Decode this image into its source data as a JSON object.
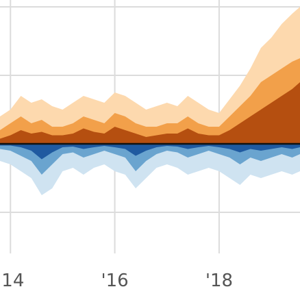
{
  "chart_data": {
    "type": "area",
    "title": "",
    "xlabel": "",
    "ylabel": "",
    "x_ticks": [
      {
        "label": "'14",
        "year": 2014
      },
      {
        "label": "'16",
        "year": 2016
      },
      {
        "label": "'18",
        "year": 2018
      }
    ],
    "xlim": [
      2013.8,
      2019.55
    ],
    "ylim": [
      -3.2,
      4.2
    ],
    "grid": true,
    "baseline": 0,
    "series": [
      {
        "name": "",
        "side": "above",
        "color": "#fdd9ae",
        "x": [
          2013.8,
          2014.0,
          2014.2,
          2014.4,
          2014.6,
          2014.8,
          2015.0,
          2015.2,
          2015.4,
          2015.6,
          2015.8,
          2016.0,
          2016.2,
          2016.4,
          2016.6,
          2016.8,
          2017.0,
          2017.2,
          2017.4,
          2017.6,
          2017.8,
          2018.0,
          2018.2,
          2018.4,
          2018.6,
          2018.8,
          2019.0,
          2019.2,
          2019.4,
          2019.55
        ],
        "values": [
          0.8,
          1.0,
          1.4,
          1.2,
          1.3,
          1.1,
          1.0,
          1.2,
          1.4,
          1.3,
          1.2,
          1.5,
          1.4,
          1.2,
          1.0,
          1.1,
          1.2,
          1.1,
          1.4,
          1.2,
          1.0,
          0.9,
          1.3,
          1.7,
          2.2,
          2.8,
          3.1,
          3.5,
          3.8,
          4.0
        ]
      },
      {
        "name": "",
        "side": "above",
        "color": "#f2a04a",
        "x": [
          2013.8,
          2014.0,
          2014.2,
          2014.4,
          2014.6,
          2014.8,
          2015.0,
          2015.2,
          2015.4,
          2015.6,
          2015.8,
          2016.0,
          2016.2,
          2016.4,
          2016.6,
          2016.8,
          2017.0,
          2017.2,
          2017.4,
          2017.6,
          2017.8,
          2018.0,
          2018.2,
          2018.4,
          2018.6,
          2018.8,
          2019.0,
          2019.2,
          2019.4,
          2019.55
        ],
        "values": [
          0.4,
          0.6,
          0.8,
          0.6,
          0.7,
          0.5,
          0.5,
          0.6,
          0.8,
          0.7,
          0.6,
          0.9,
          0.8,
          0.6,
          0.5,
          0.5,
          0.6,
          0.6,
          0.8,
          0.6,
          0.5,
          0.5,
          0.8,
          1.1,
          1.4,
          1.8,
          2.0,
          2.2,
          2.4,
          2.5
        ]
      },
      {
        "name": "",
        "side": "above",
        "color": "#b54f10",
        "x": [
          2013.8,
          2014.0,
          2014.2,
          2014.4,
          2014.6,
          2014.8,
          2015.0,
          2015.2,
          2015.4,
          2015.6,
          2015.8,
          2016.0,
          2016.2,
          2016.4,
          2016.6,
          2016.8,
          2017.0,
          2017.2,
          2017.4,
          2017.6,
          2017.8,
          2018.0,
          2018.2,
          2018.4,
          2018.6,
          2018.8,
          2019.0,
          2019.2,
          2019.4,
          2019.55
        ],
        "values": [
          0.15,
          0.25,
          0.4,
          0.3,
          0.35,
          0.25,
          0.25,
          0.3,
          0.45,
          0.35,
          0.3,
          0.5,
          0.4,
          0.3,
          0.2,
          0.25,
          0.3,
          0.3,
          0.45,
          0.3,
          0.25,
          0.25,
          0.4,
          0.6,
          0.8,
          1.0,
          1.2,
          1.4,
          1.6,
          1.8
        ]
      },
      {
        "name": "",
        "side": "below",
        "color": "#cfe3f1",
        "x": [
          2013.8,
          2014.0,
          2014.2,
          2014.4,
          2014.6,
          2014.8,
          2015.0,
          2015.2,
          2015.4,
          2015.6,
          2015.8,
          2016.0,
          2016.2,
          2016.4,
          2016.6,
          2016.8,
          2017.0,
          2017.2,
          2017.4,
          2017.6,
          2017.8,
          2018.0,
          2018.2,
          2018.4,
          2018.6,
          2018.8,
          2019.0,
          2019.2,
          2019.4,
          2019.55
        ],
        "values": [
          -0.5,
          -0.6,
          -0.8,
          -1.0,
          -1.5,
          -1.3,
          -0.8,
          -0.7,
          -0.9,
          -0.7,
          -0.6,
          -0.8,
          -0.9,
          -1.3,
          -1.0,
          -0.7,
          -0.6,
          -0.7,
          -0.9,
          -0.8,
          -0.7,
          -0.8,
          -1.0,
          -1.2,
          -0.9,
          -1.0,
          -0.9,
          -0.8,
          -0.9,
          -0.8
        ]
      },
      {
        "name": "",
        "side": "below",
        "color": "#6aa4cf",
        "x": [
          2013.8,
          2014.0,
          2014.2,
          2014.4,
          2014.6,
          2014.8,
          2015.0,
          2015.2,
          2015.4,
          2015.6,
          2015.8,
          2016.0,
          2016.2,
          2016.4,
          2016.6,
          2016.8,
          2017.0,
          2017.2,
          2017.4,
          2017.6,
          2017.8,
          2018.0,
          2018.2,
          2018.4,
          2018.6,
          2018.8,
          2019.0,
          2019.2,
          2019.4,
          2019.55
        ],
        "values": [
          -0.15,
          -0.2,
          -0.35,
          -0.5,
          -0.9,
          -0.6,
          -0.3,
          -0.25,
          -0.4,
          -0.3,
          -0.2,
          -0.3,
          -0.4,
          -0.8,
          -0.5,
          -0.3,
          -0.2,
          -0.25,
          -0.4,
          -0.3,
          -0.2,
          -0.3,
          -0.4,
          -0.6,
          -0.4,
          -0.5,
          -0.4,
          -0.3,
          -0.4,
          -0.3
        ]
      },
      {
        "name": "",
        "side": "below",
        "color": "#1f5aa0",
        "x": [
          2013.8,
          2014.0,
          2014.2,
          2014.4,
          2014.6,
          2014.8,
          2015.0,
          2015.2,
          2015.4,
          2015.6,
          2015.8,
          2016.0,
          2016.2,
          2016.4,
          2016.6,
          2016.8,
          2017.0,
          2017.2,
          2017.4,
          2017.6,
          2017.8,
          2018.0,
          2018.2,
          2018.4,
          2018.6,
          2018.8,
          2019.0,
          2019.2,
          2019.4,
          2019.55
        ],
        "values": [
          -0.05,
          -0.05,
          -0.1,
          -0.2,
          -0.45,
          -0.25,
          -0.1,
          -0.08,
          -0.15,
          -0.1,
          -0.06,
          -0.1,
          -0.15,
          -0.35,
          -0.2,
          -0.1,
          -0.06,
          -0.08,
          -0.15,
          -0.1,
          -0.06,
          -0.1,
          -0.15,
          -0.25,
          -0.15,
          -0.2,
          -0.15,
          -0.1,
          -0.15,
          -0.1
        ]
      }
    ]
  }
}
